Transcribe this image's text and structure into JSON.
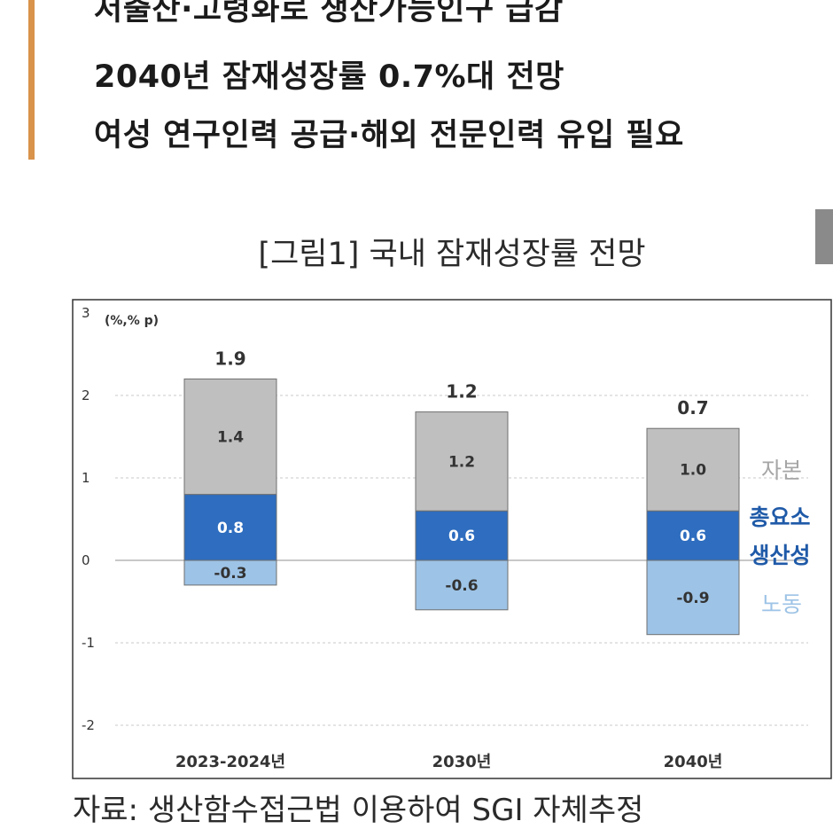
{
  "article": {
    "headline_lines": [
      "저출산·고령화로 생산가능인구 급감",
      "2040년 잠재성장률 0.7%대 전망",
      "여성 연구인력 공급·해외 전문인력 유입 필요"
    ],
    "accent_color": "#d9934a"
  },
  "figure": {
    "title": "[그림1] 국내 잠재성장률 전망",
    "source": "자료: 생산함수접근법 이용하여 SGI 자체추정"
  },
  "chart_data": {
    "type": "bar",
    "stacked": true,
    "unit_label": "(%,% p)",
    "categories": [
      "2023-2024년",
      "2030년",
      "2040년"
    ],
    "totals": [
      "1.9",
      "1.2",
      "0.7"
    ],
    "series": [
      {
        "name": "노동",
        "values": [
          -0.3,
          -0.6,
          -0.9
        ],
        "labels": [
          "-0.3",
          "-0.6",
          "-0.9"
        ],
        "color": "#9dc3e6",
        "legend_color": "#9dc3e6"
      },
      {
        "name": "총요소 생산성",
        "values": [
          0.8,
          0.6,
          0.6
        ],
        "labels": [
          "0.8",
          "0.6",
          "0.6"
        ],
        "color": "#2e6dbf",
        "legend_color": "#1f5aa8"
      },
      {
        "name": "자본",
        "values": [
          1.4,
          1.2,
          1.0
        ],
        "labels": [
          "1.4",
          "1.2",
          "1.0"
        ],
        "color": "#bfbfbf",
        "legend_color": "#a6a6a6"
      }
    ],
    "yticks": [
      "3",
      "2",
      "1",
      "0",
      "-1",
      "-2"
    ],
    "ylim": [
      -2,
      3
    ],
    "grid": true,
    "legend_position": "right"
  }
}
